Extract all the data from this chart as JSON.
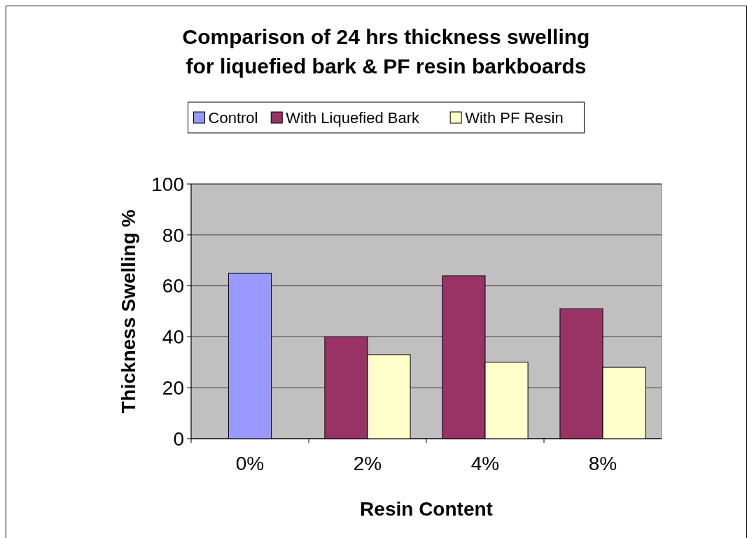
{
  "chart_data": {
    "type": "bar",
    "title": "Comparison of 24 hrs thickness swelling for liquefied bark & PF resin barkboards",
    "xlabel": "Resin Content",
    "ylabel": "Thickness Swelling %",
    "categories": [
      "0%",
      "2%",
      "4%",
      "8%"
    ],
    "series": [
      {
        "name": "Control",
        "color": "#9999ff",
        "values": [
          65,
          null,
          null,
          null
        ]
      },
      {
        "name": "With Liquefied Bark",
        "color": "#993366",
        "values": [
          null,
          40,
          64,
          51
        ]
      },
      {
        "name": "With PF Resin",
        "color": "#ffffcc",
        "values": [
          null,
          33,
          30,
          28
        ]
      }
    ],
    "ylim": [
      0,
      100
    ],
    "yticks": [
      0,
      20,
      40,
      60,
      80,
      100
    ],
    "grid": "y",
    "legend": "top"
  }
}
